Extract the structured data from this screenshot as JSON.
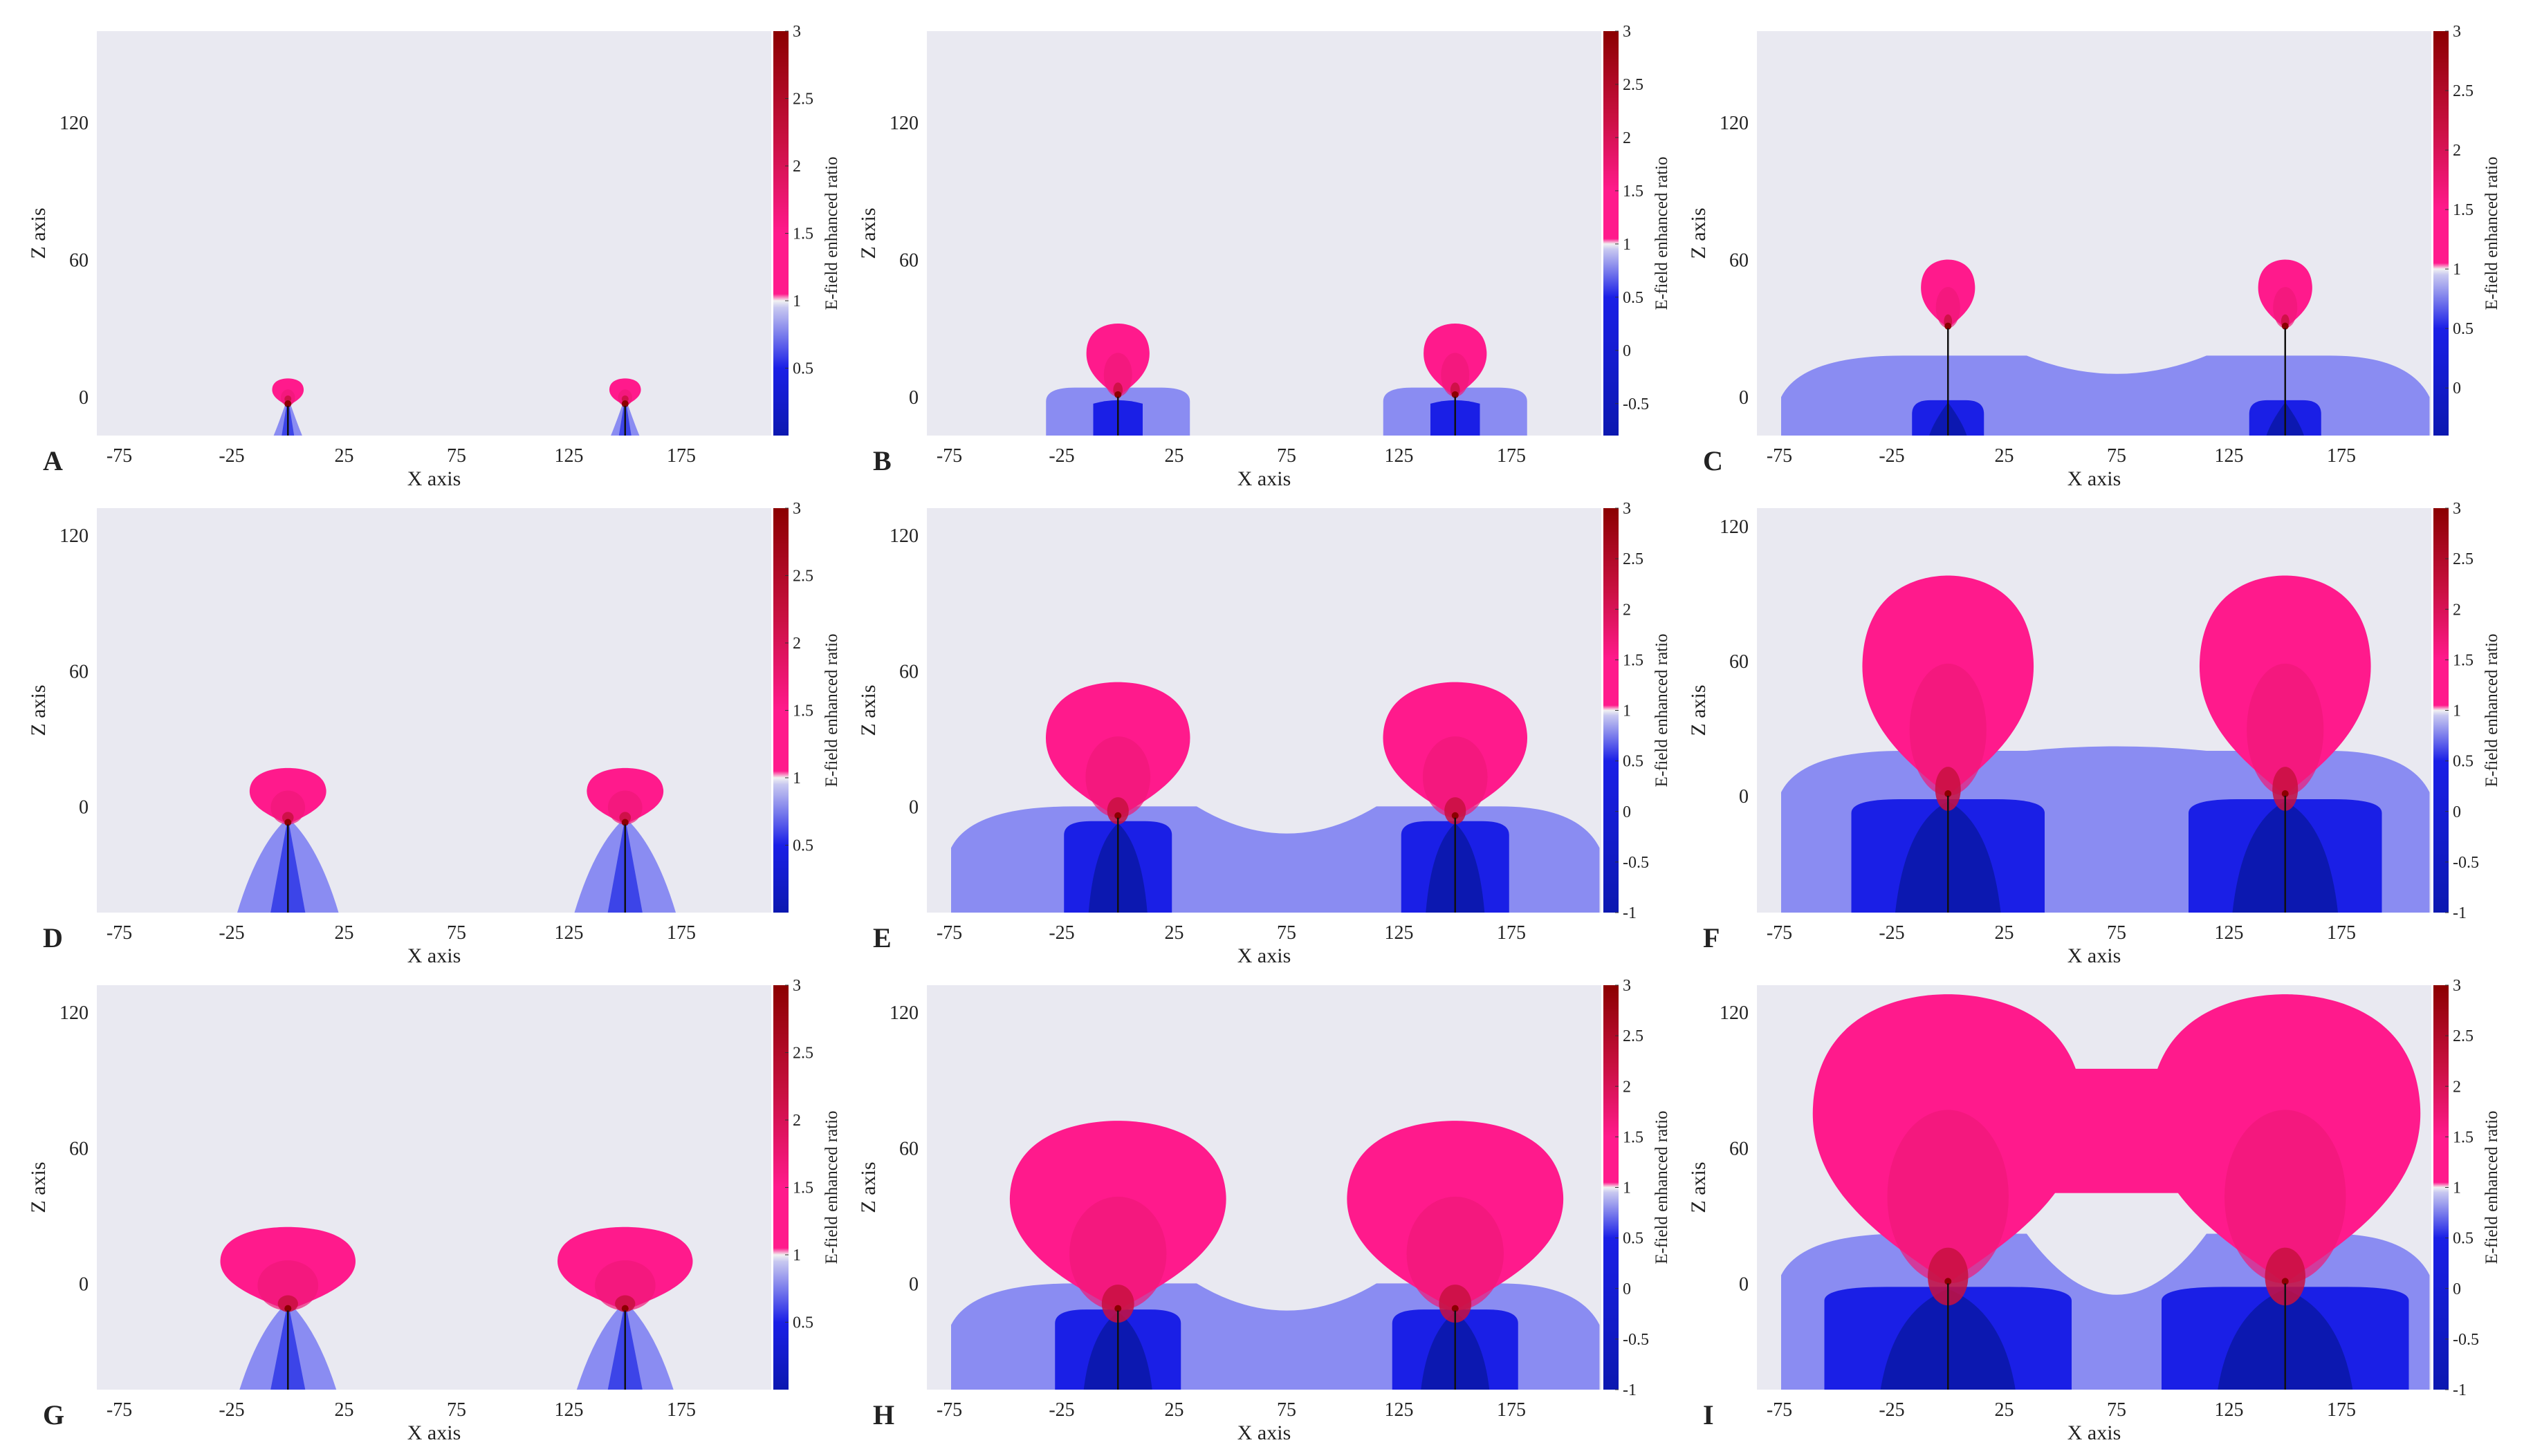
{
  "figure": {
    "colors": {
      "background": "#e9e9f1",
      "light_blue": "#8a8cf2",
      "mid_blue": "#3c44e8",
      "blue": "#1a1fe6",
      "dark_blue": "#0c18b0",
      "pink": "#ff1a8c",
      "pink_mid": "#f01878",
      "pink_dark": "#c81040",
      "dark_red": "#8b0000",
      "needle": "#111111"
    },
    "xlabel": "X axis",
    "ylabel": "Z axis",
    "colorbar_label": "E-field enhanced ratio",
    "x_ticks": [
      "-75",
      "-25",
      "25",
      "75",
      "125",
      "175"
    ]
  },
  "chart_data": [
    {
      "type": "heatmap",
      "panel_label": "A",
      "title": "",
      "xlabel": "X axis",
      "ylabel": "Z axis",
      "xlim": [
        -85,
        215
      ],
      "ylim": [
        -17,
        160
      ],
      "y_ticks": [
        "0",
        "60",
        "120"
      ],
      "colorbar": {
        "label": "E-field enhanced ratio",
        "range": [
          0,
          3
        ],
        "ticks": [
          "0.5",
          "1",
          "1.5",
          "2",
          "2.5",
          "3"
        ]
      },
      "tip_x": [
        0,
        150
      ],
      "tip_z": 0,
      "pink_lobe": {
        "half_width": 7,
        "top": 8,
        "bottom": -4
      },
      "blue_region": {
        "type": "cone",
        "half_width": 7,
        "top": 0
      },
      "dark_core": {
        "half_width": 3
      }
    },
    {
      "type": "heatmap",
      "panel_label": "B",
      "title": "",
      "xlabel": "X axis",
      "ylabel": "Z axis",
      "xlim": [
        -85,
        215
      ],
      "ylim": [
        -17,
        160
      ],
      "y_ticks": [
        "0",
        "60",
        "120"
      ],
      "colorbar": {
        "label": "E-field enhanced ratio",
        "range": [
          -0.8,
          3
        ],
        "ticks": [
          "-0.5",
          "0",
          "0.5",
          "1",
          "1.5",
          "2",
          "2.5",
          "3"
        ]
      },
      "tip_x": [
        0,
        150
      ],
      "tip_z": 0,
      "pink_lobe": {
        "half_width": 14,
        "top": 32,
        "bottom": 0
      },
      "blue_region": {
        "type": "cap",
        "half_width": 32,
        "top": 4
      },
      "dark_core": {
        "half_width": 11
      }
    },
    {
      "type": "heatmap",
      "panel_label": "C",
      "title": "",
      "xlabel": "X axis",
      "ylabel": "Z axis",
      "xlim": [
        -85,
        215
      ],
      "ylim": [
        -17,
        160
      ],
      "y_ticks": [
        "0",
        "60",
        "120"
      ],
      "colorbar": {
        "label": "E-field enhanced ratio",
        "range": [
          -0.4,
          3
        ],
        "ticks": [
          "0",
          "0.5",
          "1",
          "1.5",
          "2",
          "2.5",
          "3"
        ]
      },
      "tip_x": [
        0,
        150
      ],
      "tip_z": 0,
      "pink_lobe": {
        "half_width": 12,
        "top": 60,
        "bottom": 30
      },
      "blue_region": {
        "type": "band",
        "top": 18,
        "center_top": 10
      },
      "dark_core": {
        "half_width": 16
      }
    },
    {
      "type": "heatmap",
      "panel_label": "D",
      "title": "",
      "xlabel": "X axis",
      "ylabel": "Z axis",
      "xlim": [
        -85,
        215
      ],
      "ylim": [
        -47,
        132
      ],
      "y_ticks": [
        "0",
        "60",
        "120"
      ],
      "colorbar": {
        "label": "E-field enhanced ratio",
        "range": [
          0,
          3
        ],
        "ticks": [
          "0.5",
          "1",
          "1.5",
          "2",
          "2.5",
          "3"
        ]
      },
      "tip_x": [
        0,
        150
      ],
      "tip_z": -5,
      "pink_lobe": {
        "half_width": 17,
        "top": 17,
        "bottom": -8
      },
      "blue_region": {
        "type": "cone",
        "half_width": 23,
        "top": -5
      },
      "dark_core": {
        "half_width": 8
      }
    },
    {
      "type": "heatmap",
      "panel_label": "E",
      "title": "",
      "xlabel": "X axis",
      "ylabel": "Z axis",
      "xlim": [
        -85,
        215
      ],
      "ylim": [
        -47,
        132
      ],
      "y_ticks": [
        "0",
        "60",
        "120"
      ],
      "colorbar": {
        "label": "E-field enhanced ratio",
        "range": [
          -1,
          3
        ],
        "ticks": [
          "-1",
          "-0.5",
          "0",
          "0.5",
          "1",
          "1.5",
          "2",
          "2.5",
          "3"
        ]
      },
      "tip_x": [
        0,
        150
      ],
      "tip_z": -5,
      "pink_lobe": {
        "half_width": 32,
        "top": 55,
        "bottom": -5
      },
      "blue_region": {
        "type": "band",
        "top": 0,
        "center_top": -12
      },
      "dark_core": {
        "half_width": 24
      }
    },
    {
      "type": "heatmap",
      "panel_label": "F",
      "title": "",
      "xlabel": "X axis",
      "ylabel": "Z axis",
      "xlim": [
        -85,
        215
      ],
      "ylim": [
        -52,
        128
      ],
      "y_ticks": [
        "0",
        "60",
        "120"
      ],
      "colorbar": {
        "label": "E-field enhanced ratio",
        "range": [
          -1,
          3
        ],
        "ticks": [
          "-1",
          "-0.5",
          "0",
          "0.5",
          "1",
          "1.5",
          "2",
          "2.5",
          "3"
        ]
      },
      "tip_x": [
        0,
        150
      ],
      "tip_z": 0,
      "pink_lobe": {
        "half_width": 38,
        "top": 98,
        "bottom": 0
      },
      "blue_region": {
        "type": "band",
        "top": 20,
        "center_top": 22
      },
      "dark_core": {
        "half_width": 43
      }
    },
    {
      "type": "heatmap",
      "panel_label": "G",
      "title": "",
      "xlabel": "X axis",
      "ylabel": "Z axis",
      "xlim": [
        -85,
        215
      ],
      "ylim": [
        -47,
        132
      ],
      "y_ticks": [
        "0",
        "60",
        "120"
      ],
      "colorbar": {
        "label": "E-field enhanced ratio",
        "range": [
          0,
          3
        ],
        "ticks": [
          "0.5",
          "1",
          "1.5",
          "2",
          "2.5",
          "3"
        ]
      },
      "tip_x": [
        0,
        150
      ],
      "tip_z": -8,
      "pink_lobe": {
        "half_width": 30,
        "top": 25,
        "bottom": -12
      },
      "blue_region": {
        "type": "cone",
        "half_width": 22,
        "top": -8
      },
      "dark_core": {
        "half_width": 8
      }
    },
    {
      "type": "heatmap",
      "panel_label": "H",
      "title": "",
      "xlabel": "X axis",
      "ylabel": "Z axis",
      "xlim": [
        -85,
        215
      ],
      "ylim": [
        -47,
        132
      ],
      "y_ticks": [
        "0",
        "60",
        "120"
      ],
      "colorbar": {
        "label": "E-field enhanced ratio",
        "range": [
          -1,
          3
        ],
        "ticks": [
          "-1",
          "-0.5",
          "0",
          "0.5",
          "1",
          "1.5",
          "2",
          "2.5",
          "3"
        ]
      },
      "tip_x": [
        0,
        150
      ],
      "tip_z": -10,
      "pink_lobe": {
        "half_width": 48,
        "top": 72,
        "bottom": -12
      },
      "blue_region": {
        "type": "band",
        "top": 0,
        "center_top": -12
      },
      "dark_core": {
        "half_width": 28
      }
    },
    {
      "type": "heatmap",
      "panel_label": "I",
      "title": "",
      "xlabel": "X axis",
      "ylabel": "Z axis",
      "xlim": [
        -85,
        215
      ],
      "ylim": [
        -47,
        132
      ],
      "y_ticks": [
        "0",
        "60",
        "120"
      ],
      "colorbar": {
        "label": "E-field enhanced ratio",
        "range": [
          -1,
          3
        ],
        "ticks": [
          "-1",
          "-0.5",
          "0",
          "0.5",
          "1",
          "1.5",
          "2",
          "2.5",
          "3"
        ]
      },
      "tip_x": [
        0,
        150
      ],
      "tip_z": 0,
      "pink_lobe": {
        "half_width": 60,
        "top": 128,
        "bottom": 0,
        "merged": true
      },
      "blue_region": {
        "type": "band",
        "top": 22,
        "center_top": -5
      },
      "dark_core": {
        "half_width": 55
      }
    }
  ]
}
